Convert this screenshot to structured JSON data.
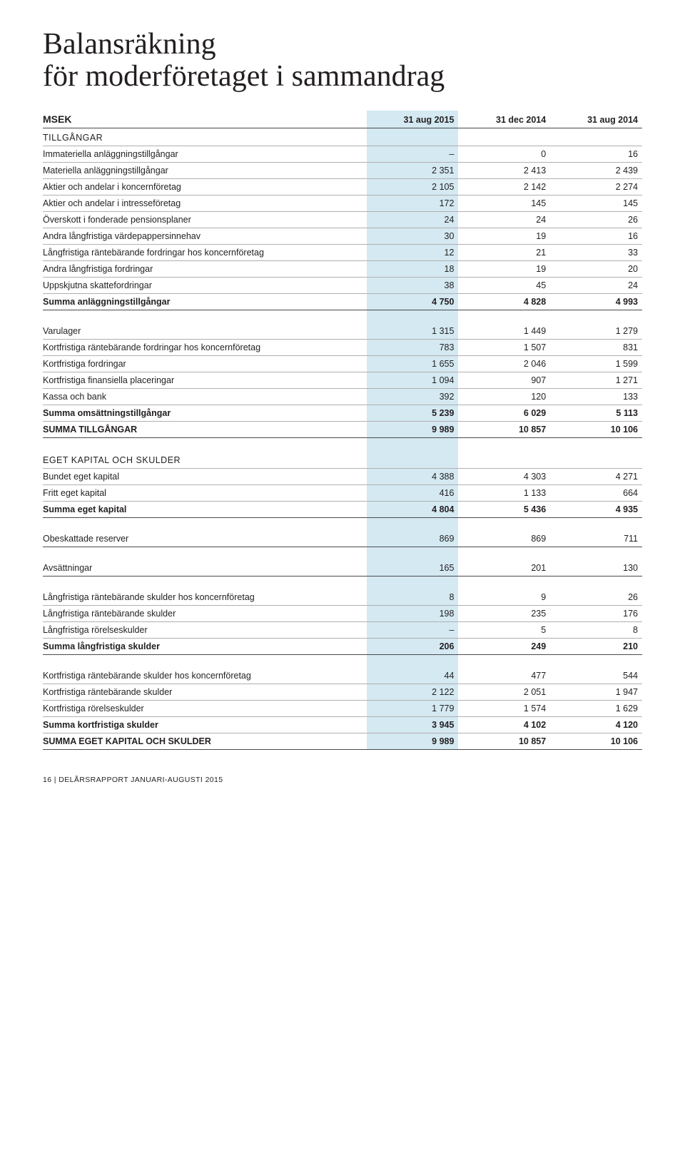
{
  "title_line1": "Balansräkning",
  "title_line2": "för moderföretaget i sammandrag",
  "header": {
    "MSEK": "MSEK",
    "c1": "31 aug 2015",
    "c2": "31 dec 2014",
    "c3": "31 aug 2014"
  },
  "sections": {
    "tillgangar": "TILLGÅNGAR",
    "eget": "EGET KAPITAL OCH SKULDER"
  },
  "rows": {
    "r1": {
      "l": "Immateriella anläggningstillgångar",
      "v": [
        "–",
        "0",
        "16"
      ]
    },
    "r2": {
      "l": "Materiella anläggningstillgångar",
      "v": [
        "2 351",
        "2 413",
        "2 439"
      ]
    },
    "r3": {
      "l": "Aktier och andelar i koncernföretag",
      "v": [
        "2 105",
        "2 142",
        "2 274"
      ]
    },
    "r4": {
      "l": "Aktier och andelar i intresseföretag",
      "v": [
        "172",
        "145",
        "145"
      ]
    },
    "r5": {
      "l": "Överskott i fonderade pensionsplaner",
      "v": [
        "24",
        "24",
        "26"
      ]
    },
    "r6": {
      "l": "Andra långfristiga värdepappersinnehav",
      "v": [
        "30",
        "19",
        "16"
      ]
    },
    "r7": {
      "l": "Långfristiga räntebärande fordringar hos koncernföretag",
      "v": [
        "12",
        "21",
        "33"
      ]
    },
    "r8": {
      "l": "Andra långfristiga fordringar",
      "v": [
        "18",
        "19",
        "20"
      ]
    },
    "r9": {
      "l": "Uppskjutna skattefordringar",
      "v": [
        "38",
        "45",
        "24"
      ]
    },
    "r10": {
      "l": "Summa anläggningstillgångar",
      "v": [
        "4 750",
        "4 828",
        "4 993"
      ]
    },
    "r11": {
      "l": "Varulager",
      "v": [
        "1 315",
        "1 449",
        "1 279"
      ]
    },
    "r12": {
      "l": "Kortfristiga räntebärande fordringar hos koncernföretag",
      "v": [
        "783",
        "1 507",
        "831"
      ]
    },
    "r13": {
      "l": "Kortfristiga fordringar",
      "v": [
        "1 655",
        "2 046",
        "1 599"
      ]
    },
    "r14": {
      "l": "Kortfristiga finansiella placeringar",
      "v": [
        "1 094",
        "907",
        "1 271"
      ]
    },
    "r15": {
      "l": "Kassa och bank",
      "v": [
        "392",
        "120",
        "133"
      ]
    },
    "r16": {
      "l": "Summa omsättningstillgångar",
      "v": [
        "5 239",
        "6 029",
        "5 113"
      ]
    },
    "r17": {
      "l": "SUMMA TILLGÅNGAR",
      "v": [
        "9 989",
        "10 857",
        "10 106"
      ]
    },
    "r18": {
      "l": "Bundet eget kapital",
      "v": [
        "4 388",
        "4 303",
        "4 271"
      ]
    },
    "r19": {
      "l": "Fritt eget kapital",
      "v": [
        "416",
        "1 133",
        "664"
      ]
    },
    "r20": {
      "l": "Summa eget kapital",
      "v": [
        "4 804",
        "5 436",
        "4 935"
      ]
    },
    "r21": {
      "l": "Obeskattade reserver",
      "v": [
        "869",
        "869",
        "711"
      ]
    },
    "r22": {
      "l": "Avsättningar",
      "v": [
        "165",
        "201",
        "130"
      ]
    },
    "r23": {
      "l": "Långfristiga räntebärande skulder hos koncernföretag",
      "v": [
        "8",
        "9",
        "26"
      ]
    },
    "r24": {
      "l": "Långfristiga räntebärande skulder",
      "v": [
        "198",
        "235",
        "176"
      ]
    },
    "r25": {
      "l": "Långfristiga rörelseskulder",
      "v": [
        "–",
        "5",
        "8"
      ]
    },
    "r26": {
      "l": "Summa långfristiga skulder",
      "v": [
        "206",
        "249",
        "210"
      ]
    },
    "r27": {
      "l": "Kortfristiga räntebärande skulder hos koncernföretag",
      "v": [
        "44",
        "477",
        "544"
      ]
    },
    "r28": {
      "l": "Kortfristiga räntebärande skulder",
      "v": [
        "2 122",
        "2 051",
        "1 947"
      ]
    },
    "r29": {
      "l": "Kortfristiga rörelseskulder",
      "v": [
        "1 779",
        "1 574",
        "1 629"
      ]
    },
    "r30": {
      "l": "Summa kortfristiga skulder",
      "v": [
        "3 945",
        "4 102",
        "4 120"
      ]
    },
    "r31": {
      "l": "SUMMA EGET KAPITAL OCH SKULDER",
      "v": [
        "9 989",
        "10 857",
        "10 106"
      ]
    }
  },
  "footer": {
    "pagenum": "16",
    "sep": " | ",
    "text": "DELÅRSRAPPORT JANUARI-AUGUSTI 2015"
  },
  "style": {
    "highlight_bg": "#d4e9f2",
    "rule_color": "#b0b0b0",
    "font_body_pt": 12.5,
    "font_title_pt": 42
  }
}
